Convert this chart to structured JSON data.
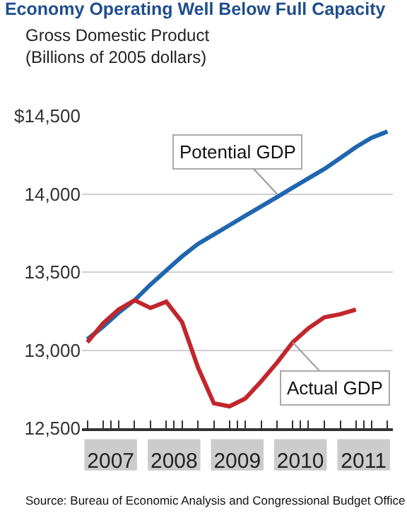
{
  "chart_data": {
    "type": "line",
    "title": "Economy Operating Well Below Full Capacity",
    "subtitle": "Gross Domestic Product\n(Billions of 2005 dollars)",
    "x": [
      "2007-01",
      "2007-04",
      "2007-07",
      "2007-10",
      "2008-01",
      "2008-04",
      "2008-07",
      "2008-10",
      "2009-01",
      "2009-04",
      "2009-07",
      "2009-10",
      "2010-01",
      "2010-04",
      "2010-07",
      "2010-10",
      "2011-01",
      "2011-04",
      "2011-07",
      "2011-10"
    ],
    "series": [
      {
        "color": "#1f66b0",
        "values": [
          13070,
          13150,
          13240,
          13320,
          13420,
          13510,
          13600,
          13680,
          13740,
          13800,
          13860,
          13920,
          13980,
          14040,
          14100,
          14160,
          14230,
          14300,
          14360,
          14400
        ]
      },
      {
        "color": "#c1272d",
        "values": [
          13050,
          13170,
          13260,
          13320,
          13270,
          13310,
          13180,
          12890,
          12660,
          12640,
          12690,
          12800,
          12920,
          13050,
          13140,
          13210,
          13230,
          13260,
          null,
          null
        ]
      }
    ],
    "xlim": [
      "2006-12",
      "2011-11"
    ],
    "xticks": [
      {
        "value": "2007-01",
        "label": null
      },
      {
        "value": "2007-04",
        "label": null
      },
      {
        "value": "2007-07",
        "label": null
      },
      {
        "value": "2007-10",
        "label": null
      },
      {
        "value": "2008-01",
        "label": null
      },
      {
        "value": "2008-04",
        "label": null
      },
      {
        "value": "2008-07",
        "label": null
      },
      {
        "value": "2008-10",
        "label": null
      },
      {
        "value": "2009-01",
        "label": null
      },
      {
        "value": "2009-04",
        "label": null
      },
      {
        "value": "2009-07",
        "label": null
      },
      {
        "value": "2009-10",
        "label": null
      },
      {
        "value": "2010-01",
        "label": null
      },
      {
        "value": "2010-04",
        "label": null
      },
      {
        "value": "2010-07",
        "label": null
      },
      {
        "value": "2010-10",
        "label": null
      },
      {
        "value": "2011-01",
        "label": null
      },
      {
        "value": "2011-04",
        "label": null
      },
      {
        "value": "2011-07",
        "label": null
      },
      {
        "value": "2011-10",
        "label": null
      },
      {
        "value": "2007-05-16",
        "label": "2007"
      },
      {
        "value": "2008-05-16",
        "label": "2008"
      },
      {
        "value": "2009-05-16",
        "label": "2009"
      },
      {
        "value": "2010-05-16",
        "label": "2010"
      },
      {
        "value": "2011-05-16",
        "label": "2011"
      }
    ],
    "ylim": [
      12500,
      14500
    ],
    "yticks": [
      {
        "value": 12500,
        "label": "12,500"
      },
      {
        "value": 13000,
        "label": "13,000"
      },
      {
        "value": 13500,
        "label": "13,500"
      },
      {
        "value": 14000,
        "label": "14,000"
      },
      {
        "value": 14500,
        "label": "$14,500"
      }
    ],
    "grid": "y",
    "marker": "none",
    "line_style": "solid",
    "annotations": [
      {
        "text": "Potential GDP",
        "x": "2010-01",
        "y": 14000
      },
      {
        "text": "Actual GDP",
        "x": "2010-04",
        "y": 13050
      },
      "Source: Bureau of Economic Analysis and Congressional Budget Office"
    ]
  }
}
